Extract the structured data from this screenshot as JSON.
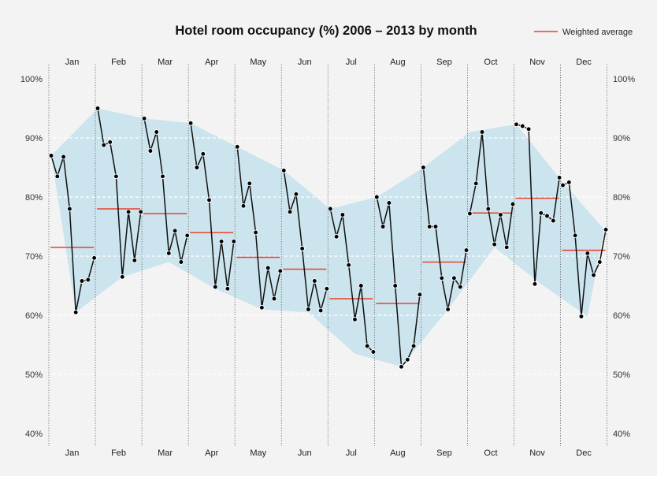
{
  "chart_data": {
    "type": "line",
    "title": "Hotel room occupancy (%) 2006 – 2013 by month",
    "legend": {
      "label": "Weighted average",
      "placement": "top-right"
    },
    "ylim": [
      38,
      101
    ],
    "yticks": [
      40,
      50,
      60,
      70,
      80,
      90,
      100
    ],
    "ytick_labels": [
      "40%",
      "50%",
      "60%",
      "70%",
      "80%",
      "90%",
      "100%"
    ],
    "grid": true,
    "months": [
      {
        "label": "Jan",
        "values": [
          87,
          83.5,
          86.8,
          78,
          60.5,
          65.8,
          66,
          69.7
        ],
        "average": 71.5
      },
      {
        "label": "Feb",
        "values": [
          95,
          88.8,
          89.3,
          83.5,
          66.5,
          77.5,
          69.3,
          77.5
        ],
        "average": 78
      },
      {
        "label": "Mar",
        "values": [
          93.3,
          87.8,
          91,
          83.5,
          70.5,
          74.3,
          69,
          73.5
        ],
        "average": 77.2
      },
      {
        "label": "Apr",
        "values": [
          92.5,
          85,
          87.3,
          79.5,
          64.8,
          72.5,
          64.5,
          72.5
        ],
        "average": 74
      },
      {
        "label": "May",
        "values": [
          88.5,
          78.5,
          82.3,
          74,
          61.3,
          68,
          62.8,
          67.5
        ],
        "average": 69.8
      },
      {
        "label": "Jun",
        "values": [
          84.5,
          77.5,
          80.5,
          71.3,
          61,
          65.8,
          60.8,
          64.5
        ],
        "average": 67.8
      },
      {
        "label": "Jul",
        "values": [
          78,
          73.3,
          77,
          68.5,
          59.3,
          65,
          54.8,
          53.8
        ],
        "average": 62.8
      },
      {
        "label": "Aug",
        "values": [
          80,
          75,
          79,
          65,
          51.3,
          52.5,
          54.8,
          63.5
        ],
        "average": 62
      },
      {
        "label": "Sep",
        "values": [
          85,
          75,
          75,
          66.3,
          61,
          66.3,
          64.8,
          71
        ],
        "average": 69
      },
      {
        "label": "Oct",
        "values": [
          77.2,
          82.3,
          91,
          78,
          72,
          77,
          71.5,
          78.8
        ],
        "average": 77.3
      },
      {
        "label": "Nov",
        "values": [
          92.3,
          92,
          91.5,
          65.3,
          77.3,
          76.8,
          76,
          83.3
        ],
        "average": 79.8
      },
      {
        "label": "Dec",
        "values": [
          82,
          82.5,
          73.5,
          59.8,
          70.5,
          66.8,
          69,
          74.5
        ],
        "average": 71
      }
    ],
    "band": {
      "upper": [
        87,
        95,
        93.3,
        92.5,
        88.5,
        84.5,
        78,
        80,
        85,
        91,
        92.3,
        82.5,
        74.5
      ],
      "lower": [
        60.5,
        66.5,
        69,
        64.5,
        61,
        60.5,
        53.5,
        51.3,
        61,
        71.5,
        65.3,
        59.8,
        74.5
      ]
    },
    "colors": {
      "band": "#cce4ee",
      "line": "#111111",
      "average": "#e8422c",
      "grid": "#ffffff",
      "divider": "#555555",
      "background": "#f3f3f3"
    }
  }
}
